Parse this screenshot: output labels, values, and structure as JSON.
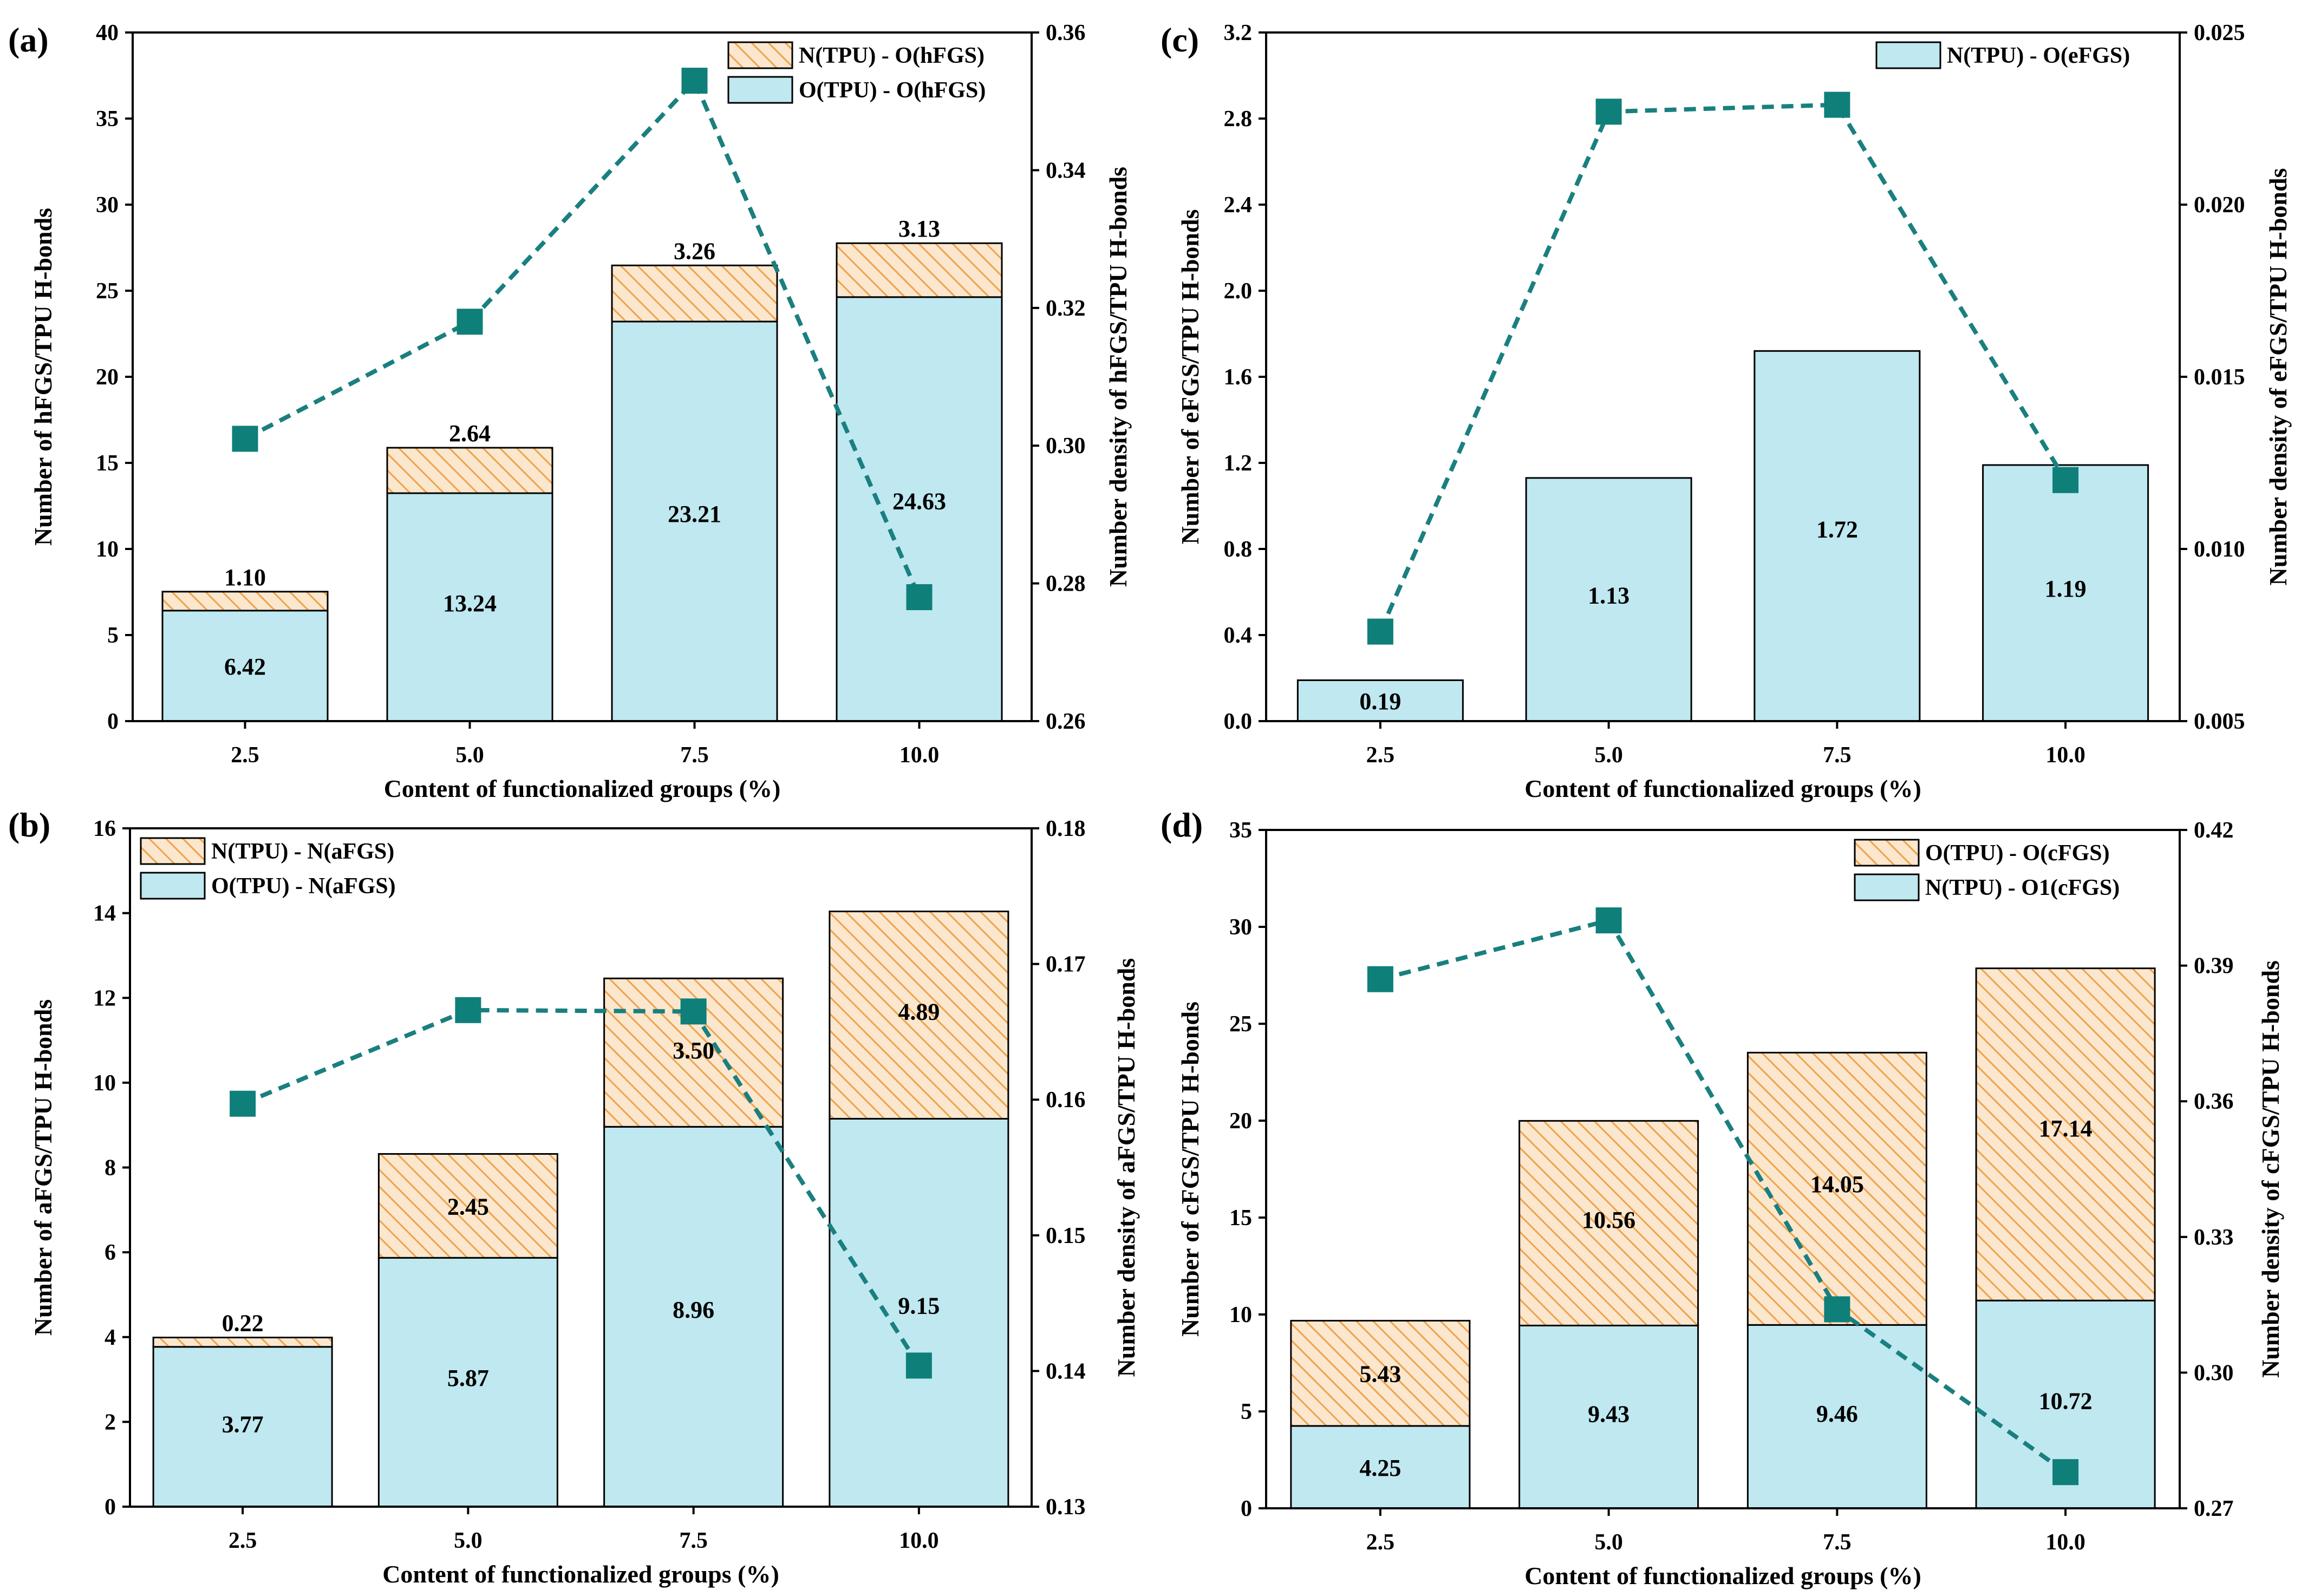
{
  "colors": {
    "base_fill": "#bfe8f0",
    "hatch_fill": "#fbe7cd",
    "hatch_line": "#f0a24a",
    "line": "#1a7f7f",
    "marker": "#0f7f7a",
    "axis": "#000000"
  },
  "chart_data": [
    {
      "panel": "(a)",
      "type": "bar",
      "stacked": true,
      "categories": [
        "2.5",
        "5.0",
        "7.5",
        "10.0"
      ],
      "xlabel": "Content of functionalized groups (%)",
      "ylabel": "Number of hFGS/TPU H-bonds",
      "y2label": "Number density of hFGS/TPU H-bonds",
      "ylim": [
        0,
        40
      ],
      "yticks": [
        "0",
        "5",
        "10",
        "15",
        "20",
        "25",
        "30",
        "35",
        "40"
      ],
      "y2lim": [
        0.26,
        0.36
      ],
      "y2ticks": [
        "0.26",
        "0.28",
        "0.30",
        "0.32",
        "0.34",
        "0.36"
      ],
      "legend_position": "top-right",
      "series": [
        {
          "name": "O(TPU) - O(hFGS)",
          "style": "solid",
          "values": [
            6.42,
            13.24,
            23.21,
            24.63
          ],
          "labels": [
            "6.42",
            "13.24",
            "23.21",
            "24.63"
          ]
        },
        {
          "name": "N(TPU) - O(hFGS)",
          "style": "hatch",
          "values": [
            1.1,
            2.64,
            3.26,
            3.13
          ],
          "labels": [
            "1.10",
            "2.64",
            "3.26",
            "3.13"
          ]
        }
      ],
      "line": {
        "axis": "right",
        "values": [
          0.301,
          0.318,
          0.353,
          0.278
        ]
      }
    },
    {
      "panel": "(b)",
      "type": "bar",
      "stacked": true,
      "categories": [
        "2.5",
        "5.0",
        "7.5",
        "10.0"
      ],
      "xlabel": "Content of functionalized groups (%)",
      "ylabel": "Number of aFGS/TPU H-bonds",
      "y2label": "Number density of aFGS/TPU H-bonds",
      "ylim": [
        0,
        16
      ],
      "yticks": [
        "0",
        "2",
        "4",
        "6",
        "8",
        "10",
        "12",
        "14",
        "16"
      ],
      "y2lim": [
        0.13,
        0.18
      ],
      "y2ticks": [
        "0.13",
        "0.14",
        "0.15",
        "0.16",
        "0.17",
        "0.18"
      ],
      "legend_position": "top-left",
      "series": [
        {
          "name": "O(TPU) - N(aFGS)",
          "style": "solid",
          "values": [
            3.77,
            5.87,
            8.96,
            9.15
          ],
          "labels": [
            "3.77",
            "5.87",
            "8.96",
            "9.15"
          ]
        },
        {
          "name": "N(TPU) - N(aFGS)",
          "style": "hatch",
          "values": [
            0.22,
            2.45,
            3.5,
            4.89
          ],
          "labels": [
            "0.22",
            "2.45",
            "3.50",
            "4.89"
          ]
        }
      ],
      "line": {
        "axis": "right",
        "values": [
          0.1597,
          0.1666,
          0.1665,
          0.1404
        ]
      }
    },
    {
      "panel": "(c)",
      "type": "bar",
      "stacked": true,
      "categories": [
        "2.5",
        "5.0",
        "7.5",
        "10.0"
      ],
      "xlabel": "Content of functionalized groups (%)",
      "ylabel": "Number of eFGS/TPU H-bonds",
      "y2label": "Number density of eFGS/TPU H-bonds",
      "ylim": [
        0,
        3.2
      ],
      "yticks": [
        "0.0",
        "0.4",
        "0.8",
        "1.2",
        "1.6",
        "2.0",
        "2.4",
        "2.8",
        "3.2"
      ],
      "y2lim": [
        0.005,
        0.025
      ],
      "y2ticks": [
        "0.005",
        "0.010",
        "0.015",
        "0.020",
        "0.025"
      ],
      "legend_position": "top-right",
      "series": [
        {
          "name": "N(TPU) - O(eFGS)",
          "style": "solid",
          "values": [
            0.19,
            1.13,
            1.72,
            1.19
          ],
          "labels": [
            "0.19",
            "1.13",
            "1.72",
            "1.19"
          ]
        }
      ],
      "line": {
        "axis": "right",
        "values": [
          0.0076,
          0.0227,
          0.0229,
          0.012
        ]
      }
    },
    {
      "panel": "(d)",
      "type": "bar",
      "stacked": true,
      "categories": [
        "2.5",
        "5.0",
        "7.5",
        "10.0"
      ],
      "xlabel": "Content of functionalized groups (%)",
      "ylabel": "Number of cFGS/TPU H-bonds",
      "y2label": "Number density of cFGS/TPU H-bonds",
      "ylim": [
        0,
        35
      ],
      "yticks": [
        "0",
        "5",
        "10",
        "15",
        "20",
        "25",
        "30",
        "35"
      ],
      "y2lim": [
        0.27,
        0.42
      ],
      "y2ticks": [
        "0.27",
        "0.30",
        "0.33",
        "0.36",
        "0.39",
        "0.42"
      ],
      "legend_position": "top-right",
      "series": [
        {
          "name": "N(TPU) - O1(cFGS)",
          "style": "solid",
          "values": [
            4.25,
            9.43,
            9.46,
            10.72
          ],
          "labels": [
            "4.25",
            "9.43",
            "9.46",
            "10.72"
          ]
        },
        {
          "name": "O(TPU) - O(cFGS)",
          "style": "hatch",
          "values": [
            5.43,
            10.56,
            14.05,
            17.14
          ],
          "labels": [
            "5.43",
            "10.56",
            "14.05",
            "17.14"
          ]
        }
      ],
      "line": {
        "axis": "right",
        "values": [
          0.387,
          0.4,
          0.314,
          0.278
        ]
      }
    }
  ]
}
